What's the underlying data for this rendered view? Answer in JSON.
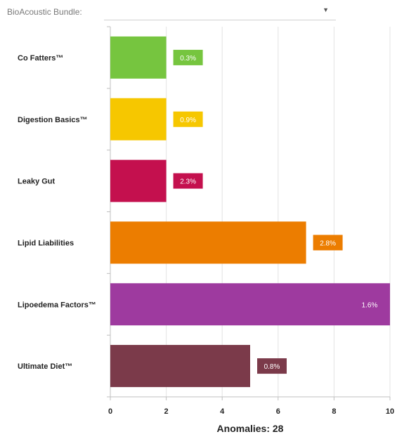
{
  "selector": {
    "label": "BioAcoustic Bundle:",
    "selected_value": "",
    "caret_icon": "chevron-down-icon"
  },
  "chart_data": {
    "type": "bar",
    "orientation": "horizontal",
    "categories": [
      "Co Fatters™",
      "Digestion Basics™",
      "Leaky Gut",
      "Lipid Liabilities",
      "Lipoedema Factors™",
      "Ultimate Diet™"
    ],
    "values": [
      2,
      2,
      2,
      7,
      10,
      5
    ],
    "data_labels": [
      "0.3%",
      "0.9%",
      "2.3%",
      "2.8%",
      "1.6%",
      "0.8%"
    ],
    "colors": [
      "#76c53f",
      "#f6c700",
      "#c4104e",
      "#ec7d00",
      "#9e3a9f",
      "#7b3a4a"
    ],
    "xlim": [
      0,
      10
    ],
    "xticks": [
      0,
      2,
      4,
      6,
      8,
      10
    ],
    "xlabel": "Anomalies: 28",
    "grid": true
  }
}
